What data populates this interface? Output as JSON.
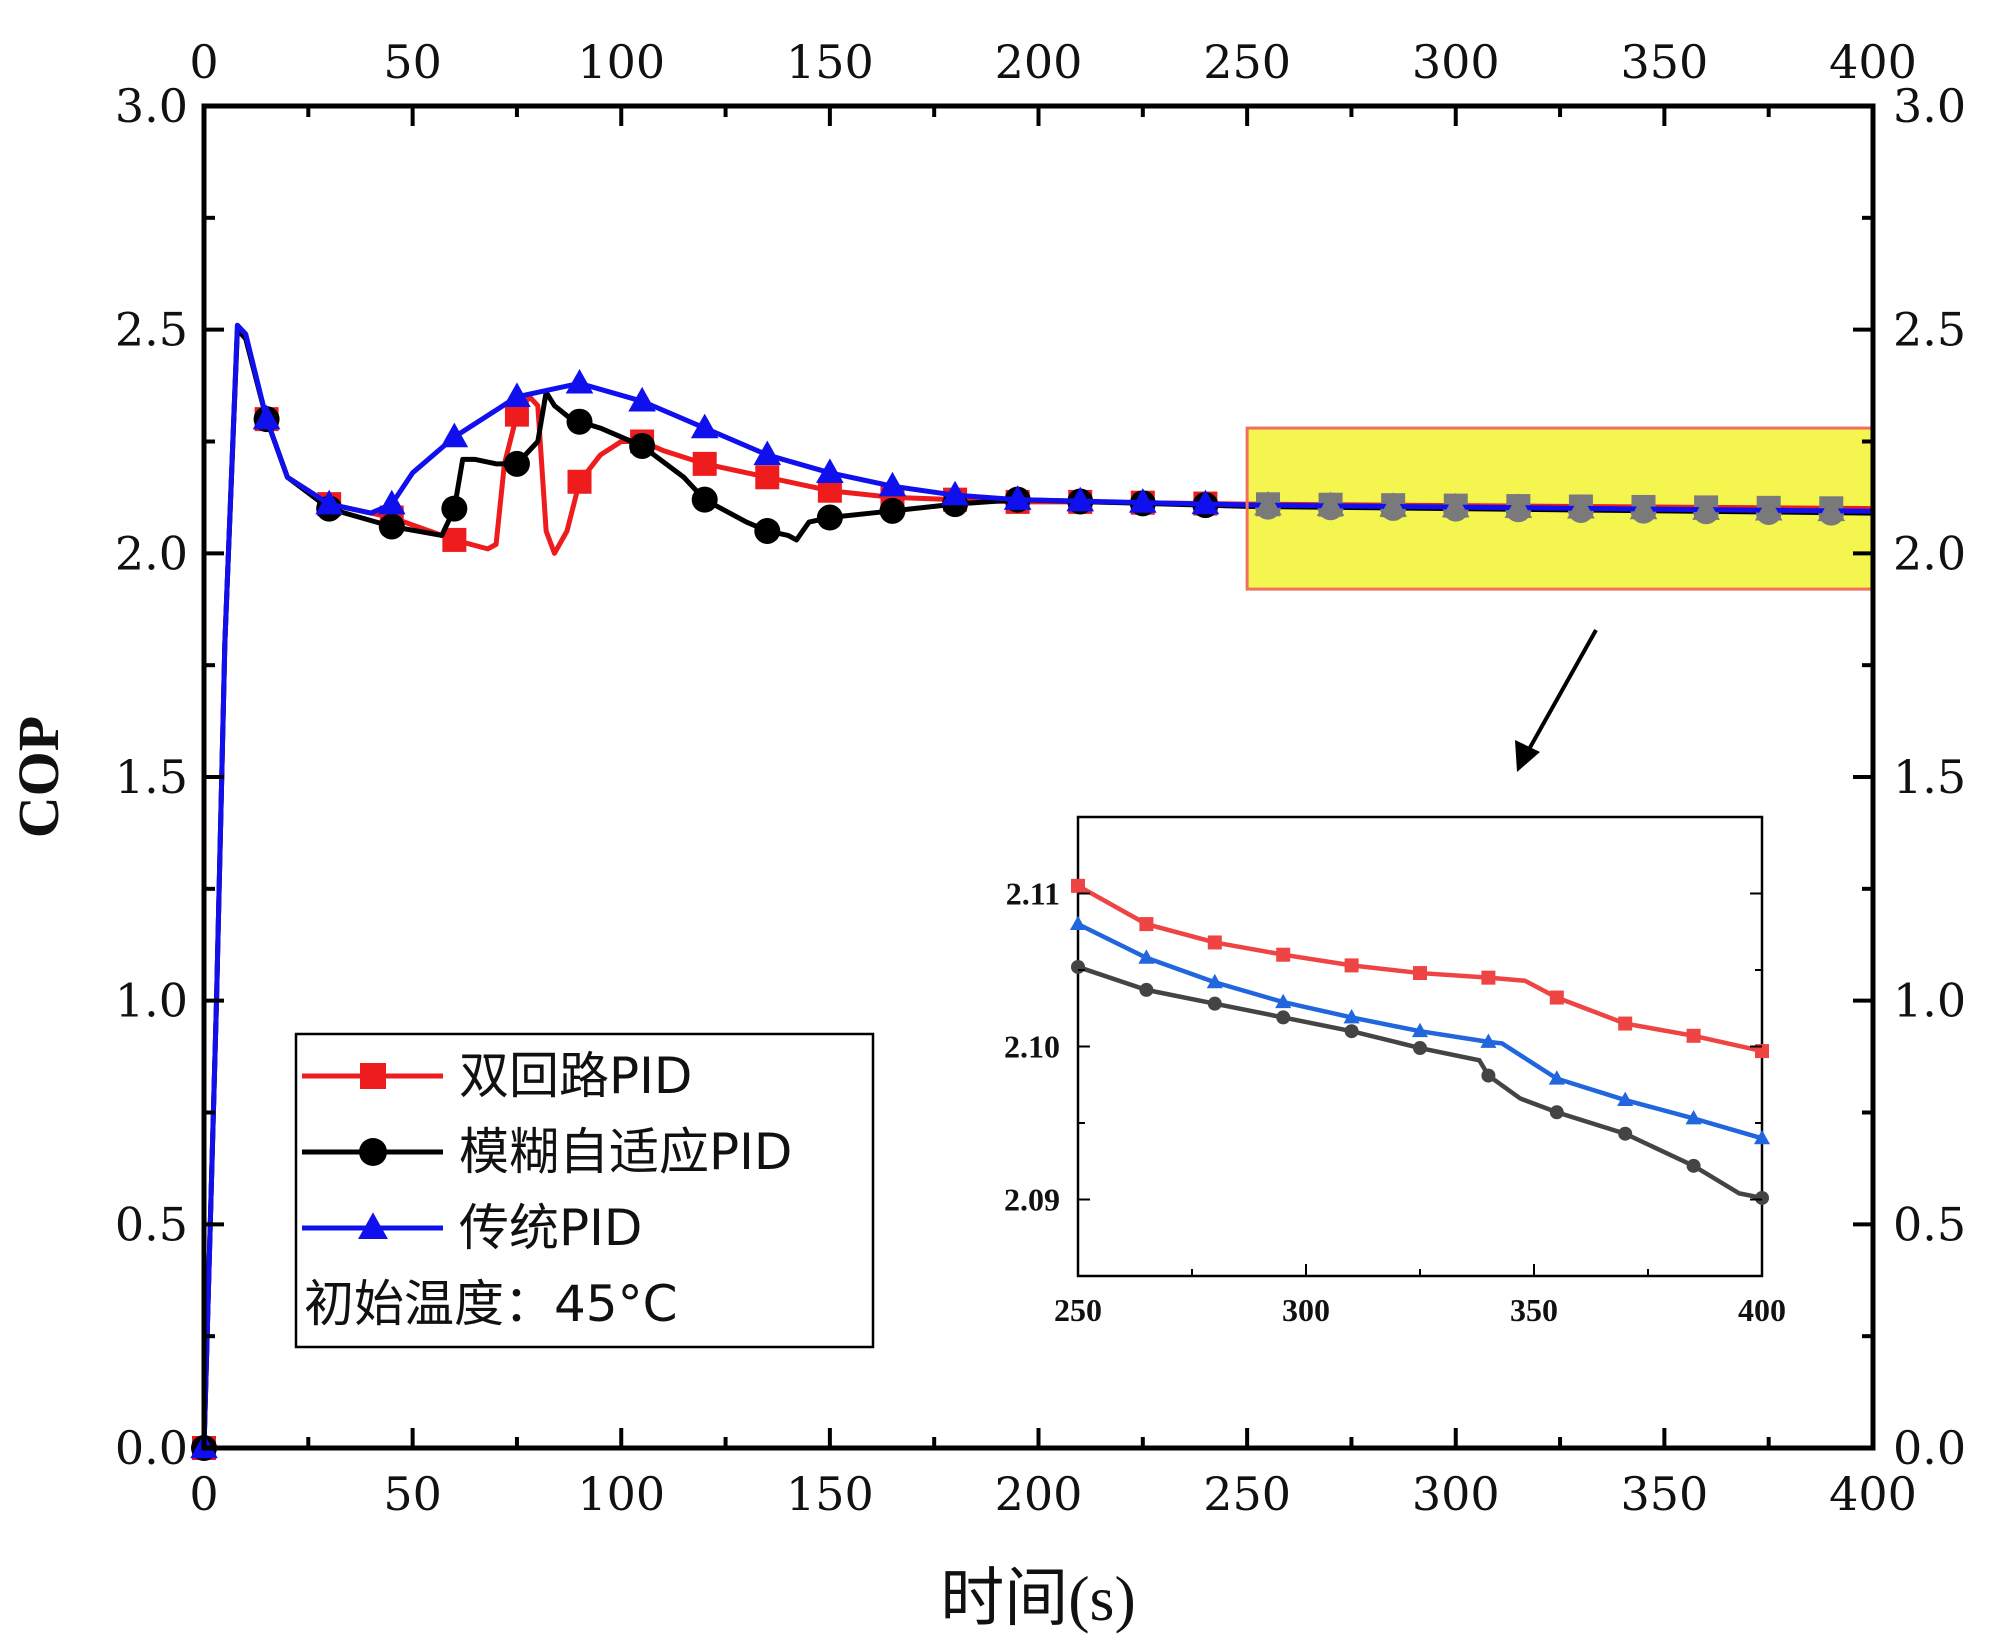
{
  "chart_data": {
    "type": "line",
    "title": "",
    "xlabel": "时间(s)",
    "ylabel": "COP",
    "xlim": [
      0,
      400
    ],
    "ylim": [
      0,
      3.0
    ],
    "x_ticks": [
      "0",
      "50",
      "100",
      "150",
      "200",
      "250",
      "300",
      "350",
      "400"
    ],
    "y_ticks": [
      "0.0",
      "0.5",
      "1.0",
      "1.5",
      "2.0",
      "2.5",
      "3.0"
    ],
    "marker_interval": 15,
    "legend_placement": "bottom-left",
    "legend_note": "初始温度：45°C",
    "series": [
      {
        "name": "双回路PID",
        "color": "#ee1c1c",
        "marker": "square",
        "x": [
          0,
          3,
          5,
          8,
          10,
          15,
          20,
          30,
          45,
          60,
          68,
          70,
          72,
          75,
          78,
          80,
          82,
          84,
          87,
          90,
          95,
          100,
          105,
          110,
          120,
          135,
          150,
          165,
          180,
          195,
          210,
          250,
          400
        ],
        "y": [
          0,
          1.0,
          1.8,
          2.5,
          2.48,
          2.3,
          2.17,
          2.11,
          2.08,
          2.03,
          2.01,
          2.02,
          2.2,
          2.31,
          2.35,
          2.33,
          2.05,
          2.0,
          2.05,
          2.16,
          2.22,
          2.25,
          2.25,
          2.23,
          2.2,
          2.17,
          2.14,
          2.125,
          2.12,
          2.115,
          2.115,
          2.11,
          2.1
        ]
      },
      {
        "name": "模糊自适应PID",
        "color": "#000000",
        "marker": "circle",
        "x": [
          0,
          3,
          5,
          8,
          10,
          15,
          20,
          30,
          45,
          57,
          60,
          62,
          65,
          70,
          75,
          80,
          82,
          84,
          88,
          95,
          105,
          115,
          120,
          130,
          135,
          140,
          142,
          145,
          150,
          160,
          165,
          180,
          195,
          250,
          400
        ],
        "y": [
          0,
          1.0,
          1.8,
          2.5,
          2.48,
          2.3,
          2.17,
          2.1,
          2.06,
          2.04,
          2.1,
          2.21,
          2.21,
          2.2,
          2.2,
          2.25,
          2.36,
          2.33,
          2.3,
          2.28,
          2.24,
          2.17,
          2.12,
          2.07,
          2.05,
          2.04,
          2.03,
          2.07,
          2.08,
          2.09,
          2.095,
          2.11,
          2.12,
          2.105,
          2.09
        ]
      },
      {
        "name": "传统PID",
        "color": "#1010ee",
        "marker": "triangle",
        "x": [
          0,
          3,
          5,
          8,
          10,
          15,
          20,
          30,
          40,
          45,
          50,
          60,
          75,
          90,
          105,
          120,
          135,
          150,
          165,
          180,
          195,
          250,
          400
        ],
        "y": [
          0,
          1.0,
          1.8,
          2.51,
          2.49,
          2.3,
          2.17,
          2.11,
          2.09,
          2.11,
          2.18,
          2.26,
          2.35,
          2.38,
          2.34,
          2.28,
          2.22,
          2.18,
          2.15,
          2.13,
          2.12,
          2.108,
          2.094
        ]
      }
    ],
    "highlight_region": {
      "x": [
        250,
        400
      ],
      "y": [
        1.92,
        2.28
      ],
      "color": "#f5f550"
    },
    "inset": {
      "xlim": [
        250,
        400
      ],
      "ylim": [
        2.085,
        2.115
      ],
      "x_ticks": [
        "250",
        "300",
        "350",
        "400"
      ],
      "y_ticks": [
        "2.09",
        "2.10",
        "2.11"
      ],
      "series": [
        {
          "name": "双回路PID",
          "color": "#ee4444",
          "x": [
            250,
            265,
            280,
            295,
            310,
            325,
            340,
            348,
            355,
            370,
            385,
            400
          ],
          "y": [
            2.1105,
            2.108,
            2.1068,
            2.106,
            2.1053,
            2.1048,
            2.1045,
            2.1043,
            2.1032,
            2.1015,
            2.1007,
            2.0997
          ]
        },
        {
          "name": "模糊自适应PID",
          "color": "#444444",
          "x": [
            250,
            265,
            280,
            295,
            310,
            325,
            338,
            340,
            347,
            355,
            370,
            385,
            395,
            400
          ],
          "y": [
            2.1052,
            2.1037,
            2.1028,
            2.1019,
            2.101,
            2.0999,
            2.0991,
            2.0981,
            2.0966,
            2.0957,
            2.0943,
            2.0922,
            2.0904,
            2.0901
          ]
        },
        {
          "name": "传统PID",
          "color": "#2266dd",
          "x": [
            250,
            265,
            280,
            295,
            310,
            325,
            340,
            343,
            355,
            370,
            385,
            400
          ],
          "y": [
            2.108,
            2.1058,
            2.1042,
            2.1029,
            2.1019,
            2.101,
            2.1003,
            2.1002,
            2.0979,
            2.0965,
            2.0953,
            2.094
          ]
        }
      ]
    }
  }
}
